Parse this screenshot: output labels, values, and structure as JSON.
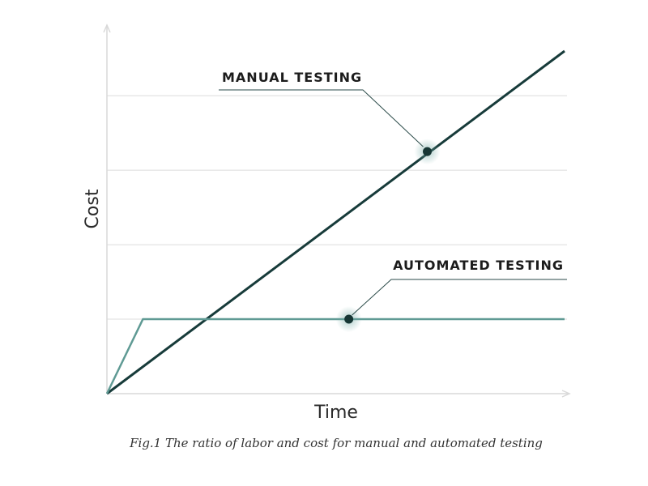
{
  "chart_data": {
    "type": "line",
    "title": "",
    "xlabel": "Time",
    "ylabel": "Cost",
    "x": [
      0,
      1,
      7
    ],
    "xlim": [
      0,
      7
    ],
    "ylim": [
      0,
      4.6
    ],
    "grid": true,
    "gridlines_y": [
      1,
      2,
      3,
      4
    ],
    "series": [
      {
        "name": "MANUAL TESTING",
        "color": "#173b3a",
        "points": [
          [
            0,
            0
          ],
          [
            7,
            4.6
          ]
        ],
        "marker": [
          4.9,
          3.25
        ],
        "label": "MANUAL TESTING"
      },
      {
        "name": "AUTOMATED TESTING",
        "color": "#5f9a94",
        "points": [
          [
            0,
            0
          ],
          [
            0.55,
            1
          ],
          [
            7,
            1
          ]
        ],
        "marker": [
          3.7,
          1
        ],
        "label": "AUTOMATED TESTING"
      }
    ],
    "caption": "Fig.1 The ratio of labor and cost for manual and automated testing"
  },
  "colors": {
    "axis": "#d9d9d9",
    "grid": "#dcdcdc",
    "text": "#222222"
  }
}
